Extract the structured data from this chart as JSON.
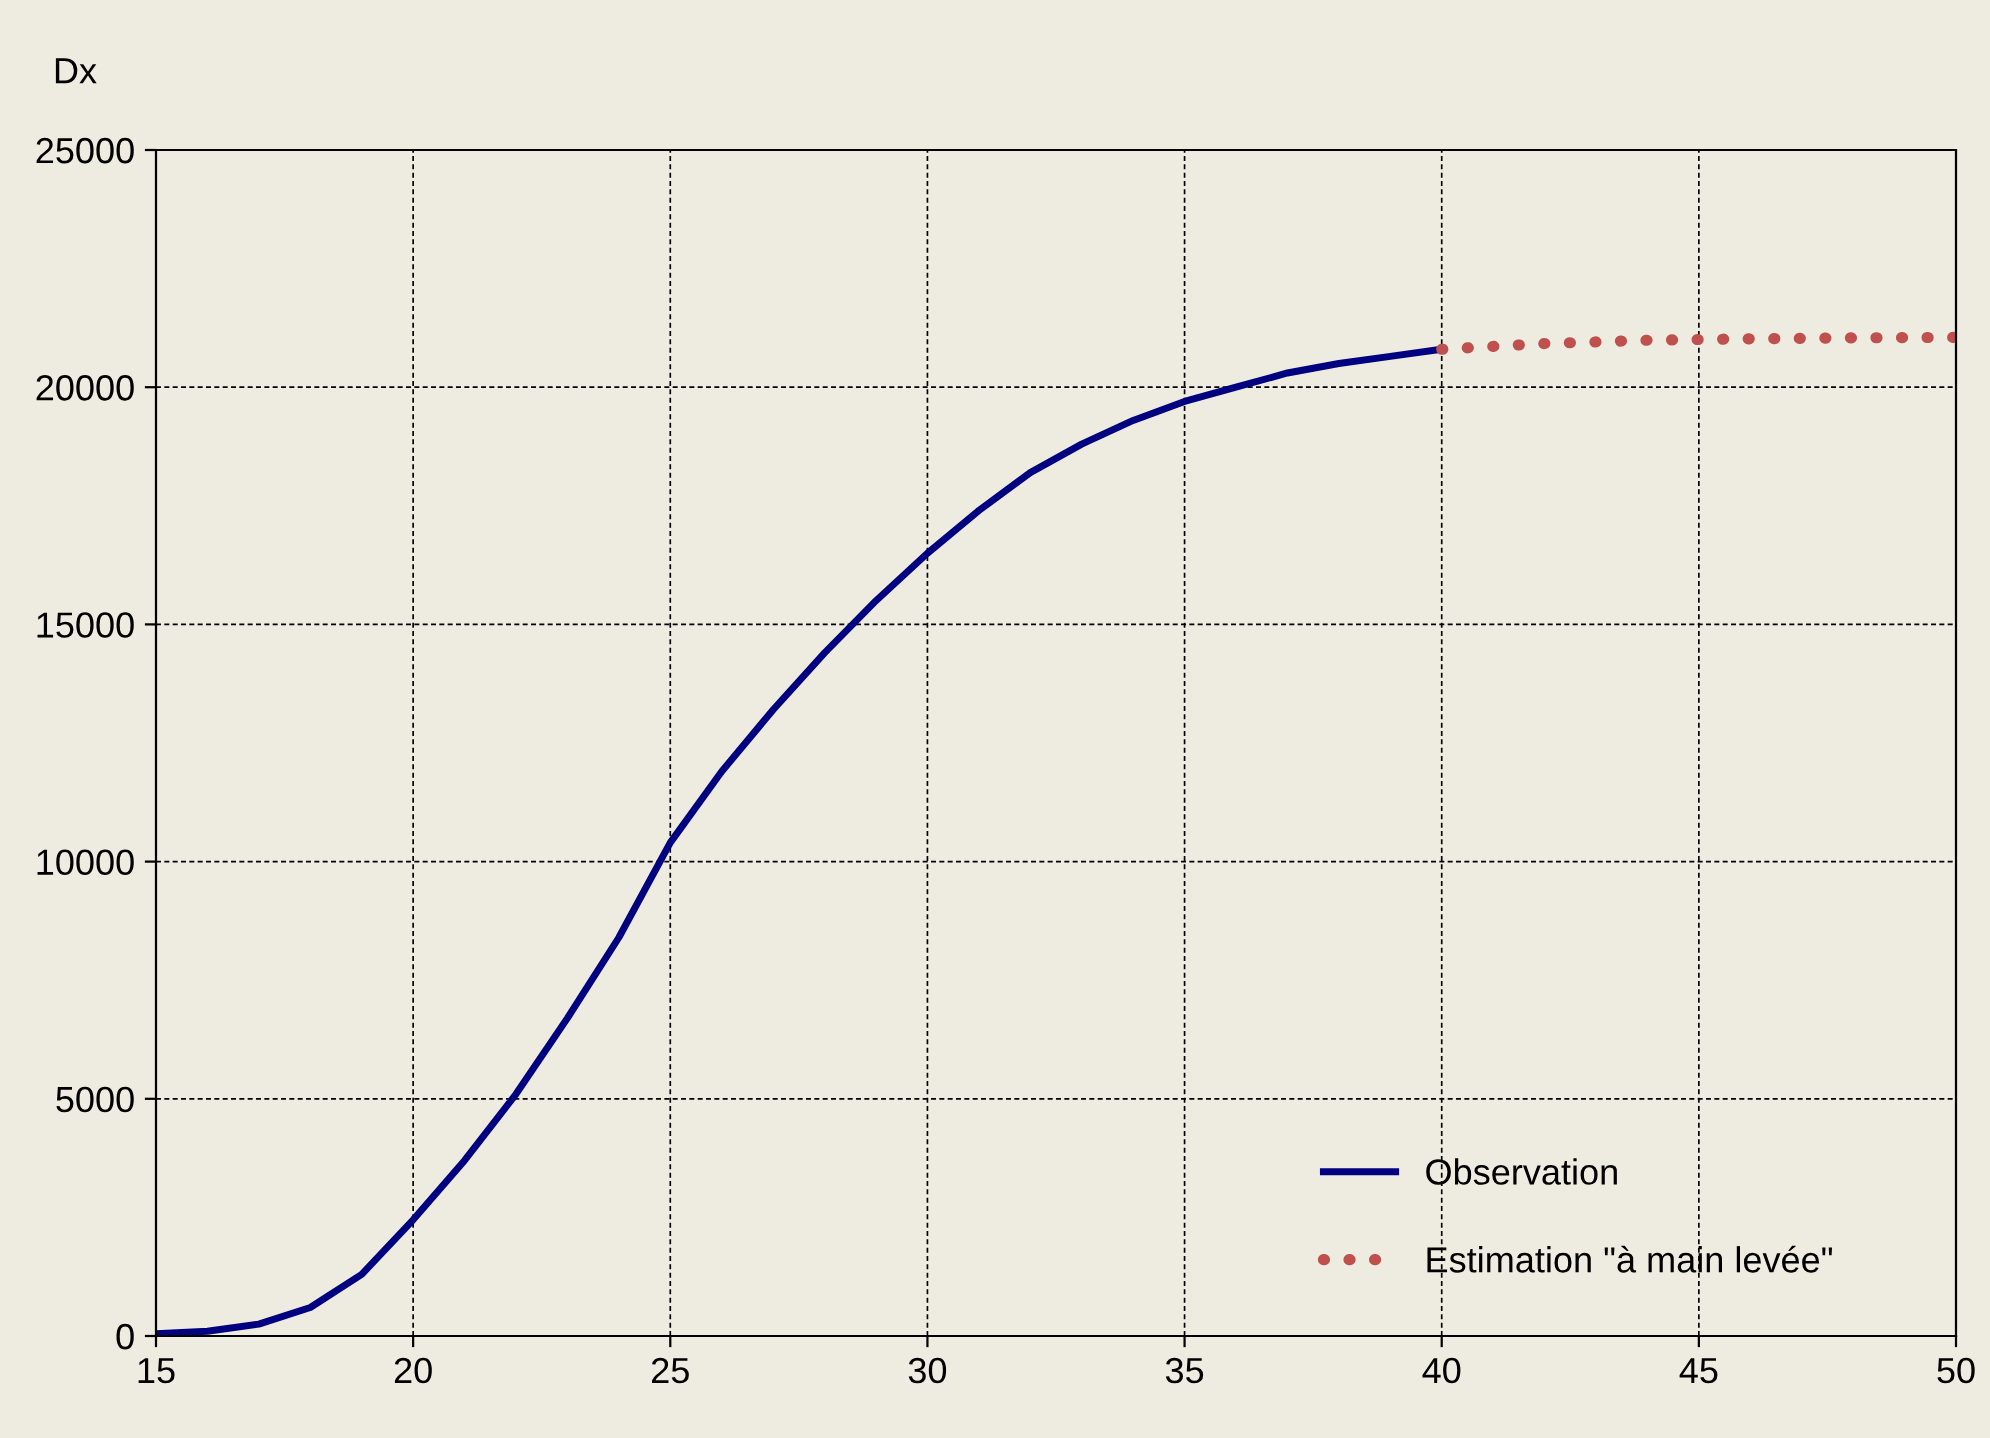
{
  "chart_data": {
    "type": "line",
    "ylabel": "Dx",
    "series": [
      {
        "name": "Observation",
        "color": "#000080",
        "line_style": "solid",
        "x": [
          15,
          16,
          17,
          18,
          19,
          20,
          21,
          22,
          23,
          24,
          25,
          26,
          27,
          28,
          29,
          30,
          31,
          32,
          33,
          34,
          35,
          36,
          37,
          38,
          39,
          40
        ],
        "values": [
          50,
          100,
          250,
          600,
          1300,
          2450,
          3700,
          5100,
          6700,
          8400,
          10400,
          11900,
          13200,
          14400,
          15500,
          16500,
          17400,
          18200,
          18800,
          19300,
          19700,
          20000,
          20300,
          20500,
          20650,
          20800
        ]
      },
      {
        "name": "Estimation \"à main levée\"",
        "color": "#c0504d",
        "line_style": "dotted",
        "x": [
          40,
          42,
          44,
          46,
          48,
          50
        ],
        "values": [
          20800,
          20920,
          20990,
          21020,
          21040,
          21050
        ]
      }
    ],
    "xlim": [
      15,
      50
    ],
    "xticks": [
      15,
      20,
      25,
      30,
      35,
      40,
      45,
      50
    ],
    "ylim": [
      0,
      25000
    ],
    "yticks": [
      0,
      5000,
      10000,
      15000,
      20000,
      25000
    ],
    "grid": true,
    "legend": "bottom right"
  }
}
